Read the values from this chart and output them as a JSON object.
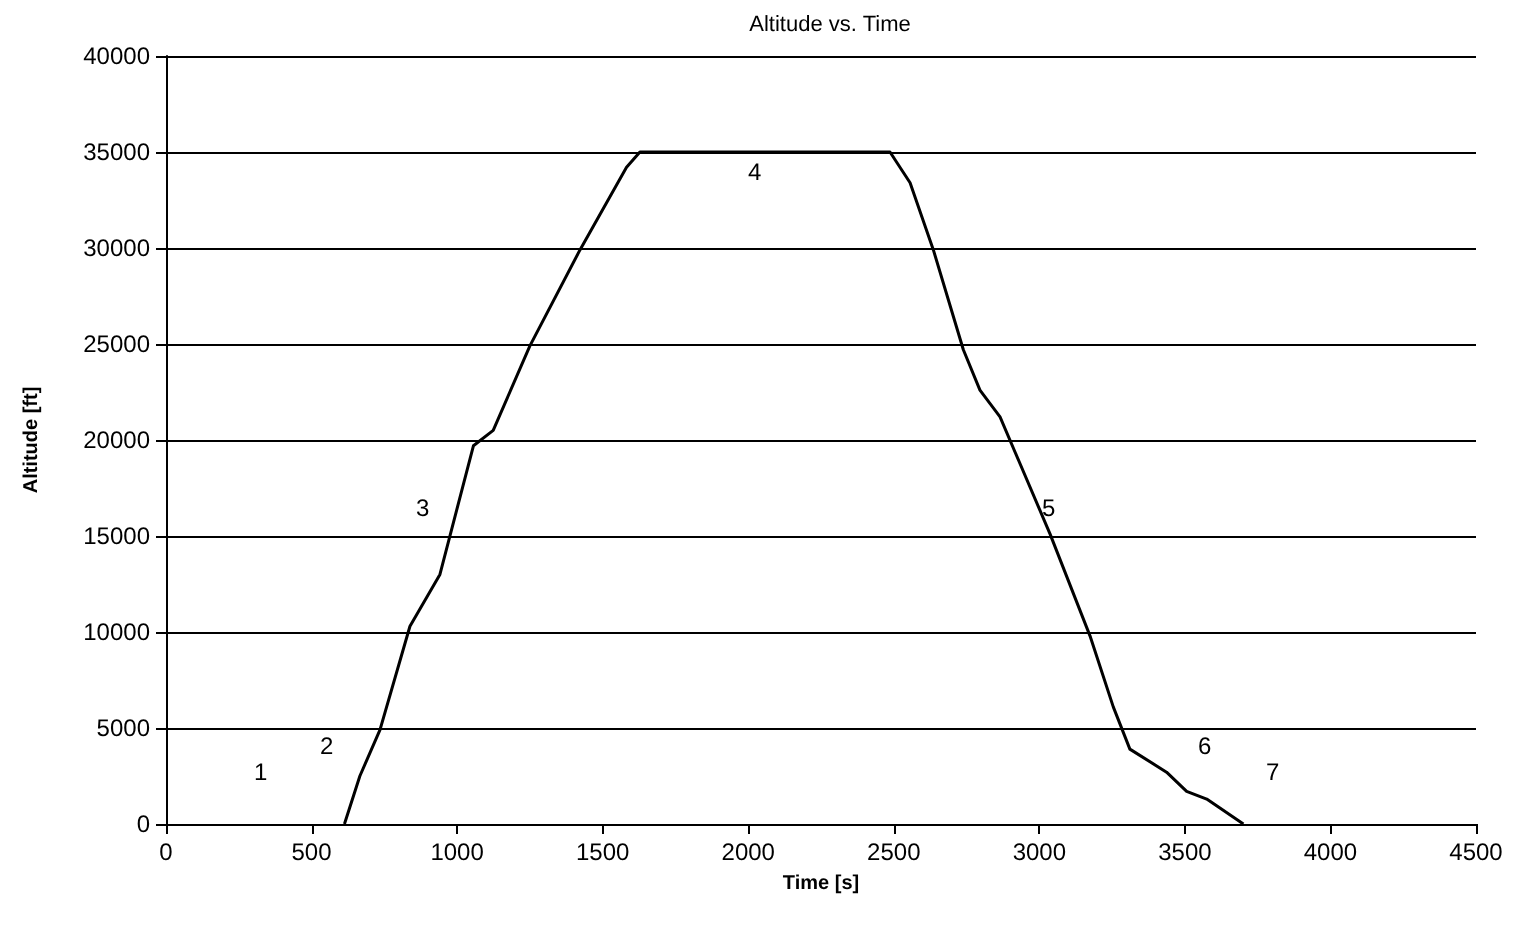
{
  "chart_data": {
    "type": "line",
    "title": "Altitude vs. Time",
    "xlabel": "Time [s]",
    "ylabel": "Altitude [ft]",
    "xlim": [
      0,
      4500
    ],
    "xticks": [
      0,
      500,
      1000,
      1500,
      2000,
      2500,
      3000,
      3500,
      4000,
      4500
    ],
    "ylim": [
      0,
      40000
    ],
    "yticks": [
      0,
      5000,
      10000,
      15000,
      20000,
      25000,
      30000,
      35000,
      40000
    ],
    "grid": "y",
    "marker": "none",
    "line_style": "solid",
    "series": [
      {
        "color": "#000000",
        "x": [
          613,
          666,
          735,
          838,
          941,
          1056,
          1124,
          1250,
          1422,
          1582,
          1628,
          2487,
          2556,
          2636,
          2739,
          2796,
          2865,
          3037,
          3174,
          3254,
          3311,
          3437,
          3506,
          3575,
          3701
        ],
        "values": [
          0,
          2500,
          4900,
          10300,
          13000,
          19700,
          20500,
          24900,
          29900,
          34200,
          35000,
          35000,
          33400,
          29900,
          24700,
          22600,
          21200,
          15100,
          9800,
          6100,
          3900,
          2700,
          1700,
          1300,
          0
        ]
      }
    ],
    "annotations": [
      "1",
      "2",
      "3",
      "4",
      "5",
      "6",
      "7"
    ]
  }
}
